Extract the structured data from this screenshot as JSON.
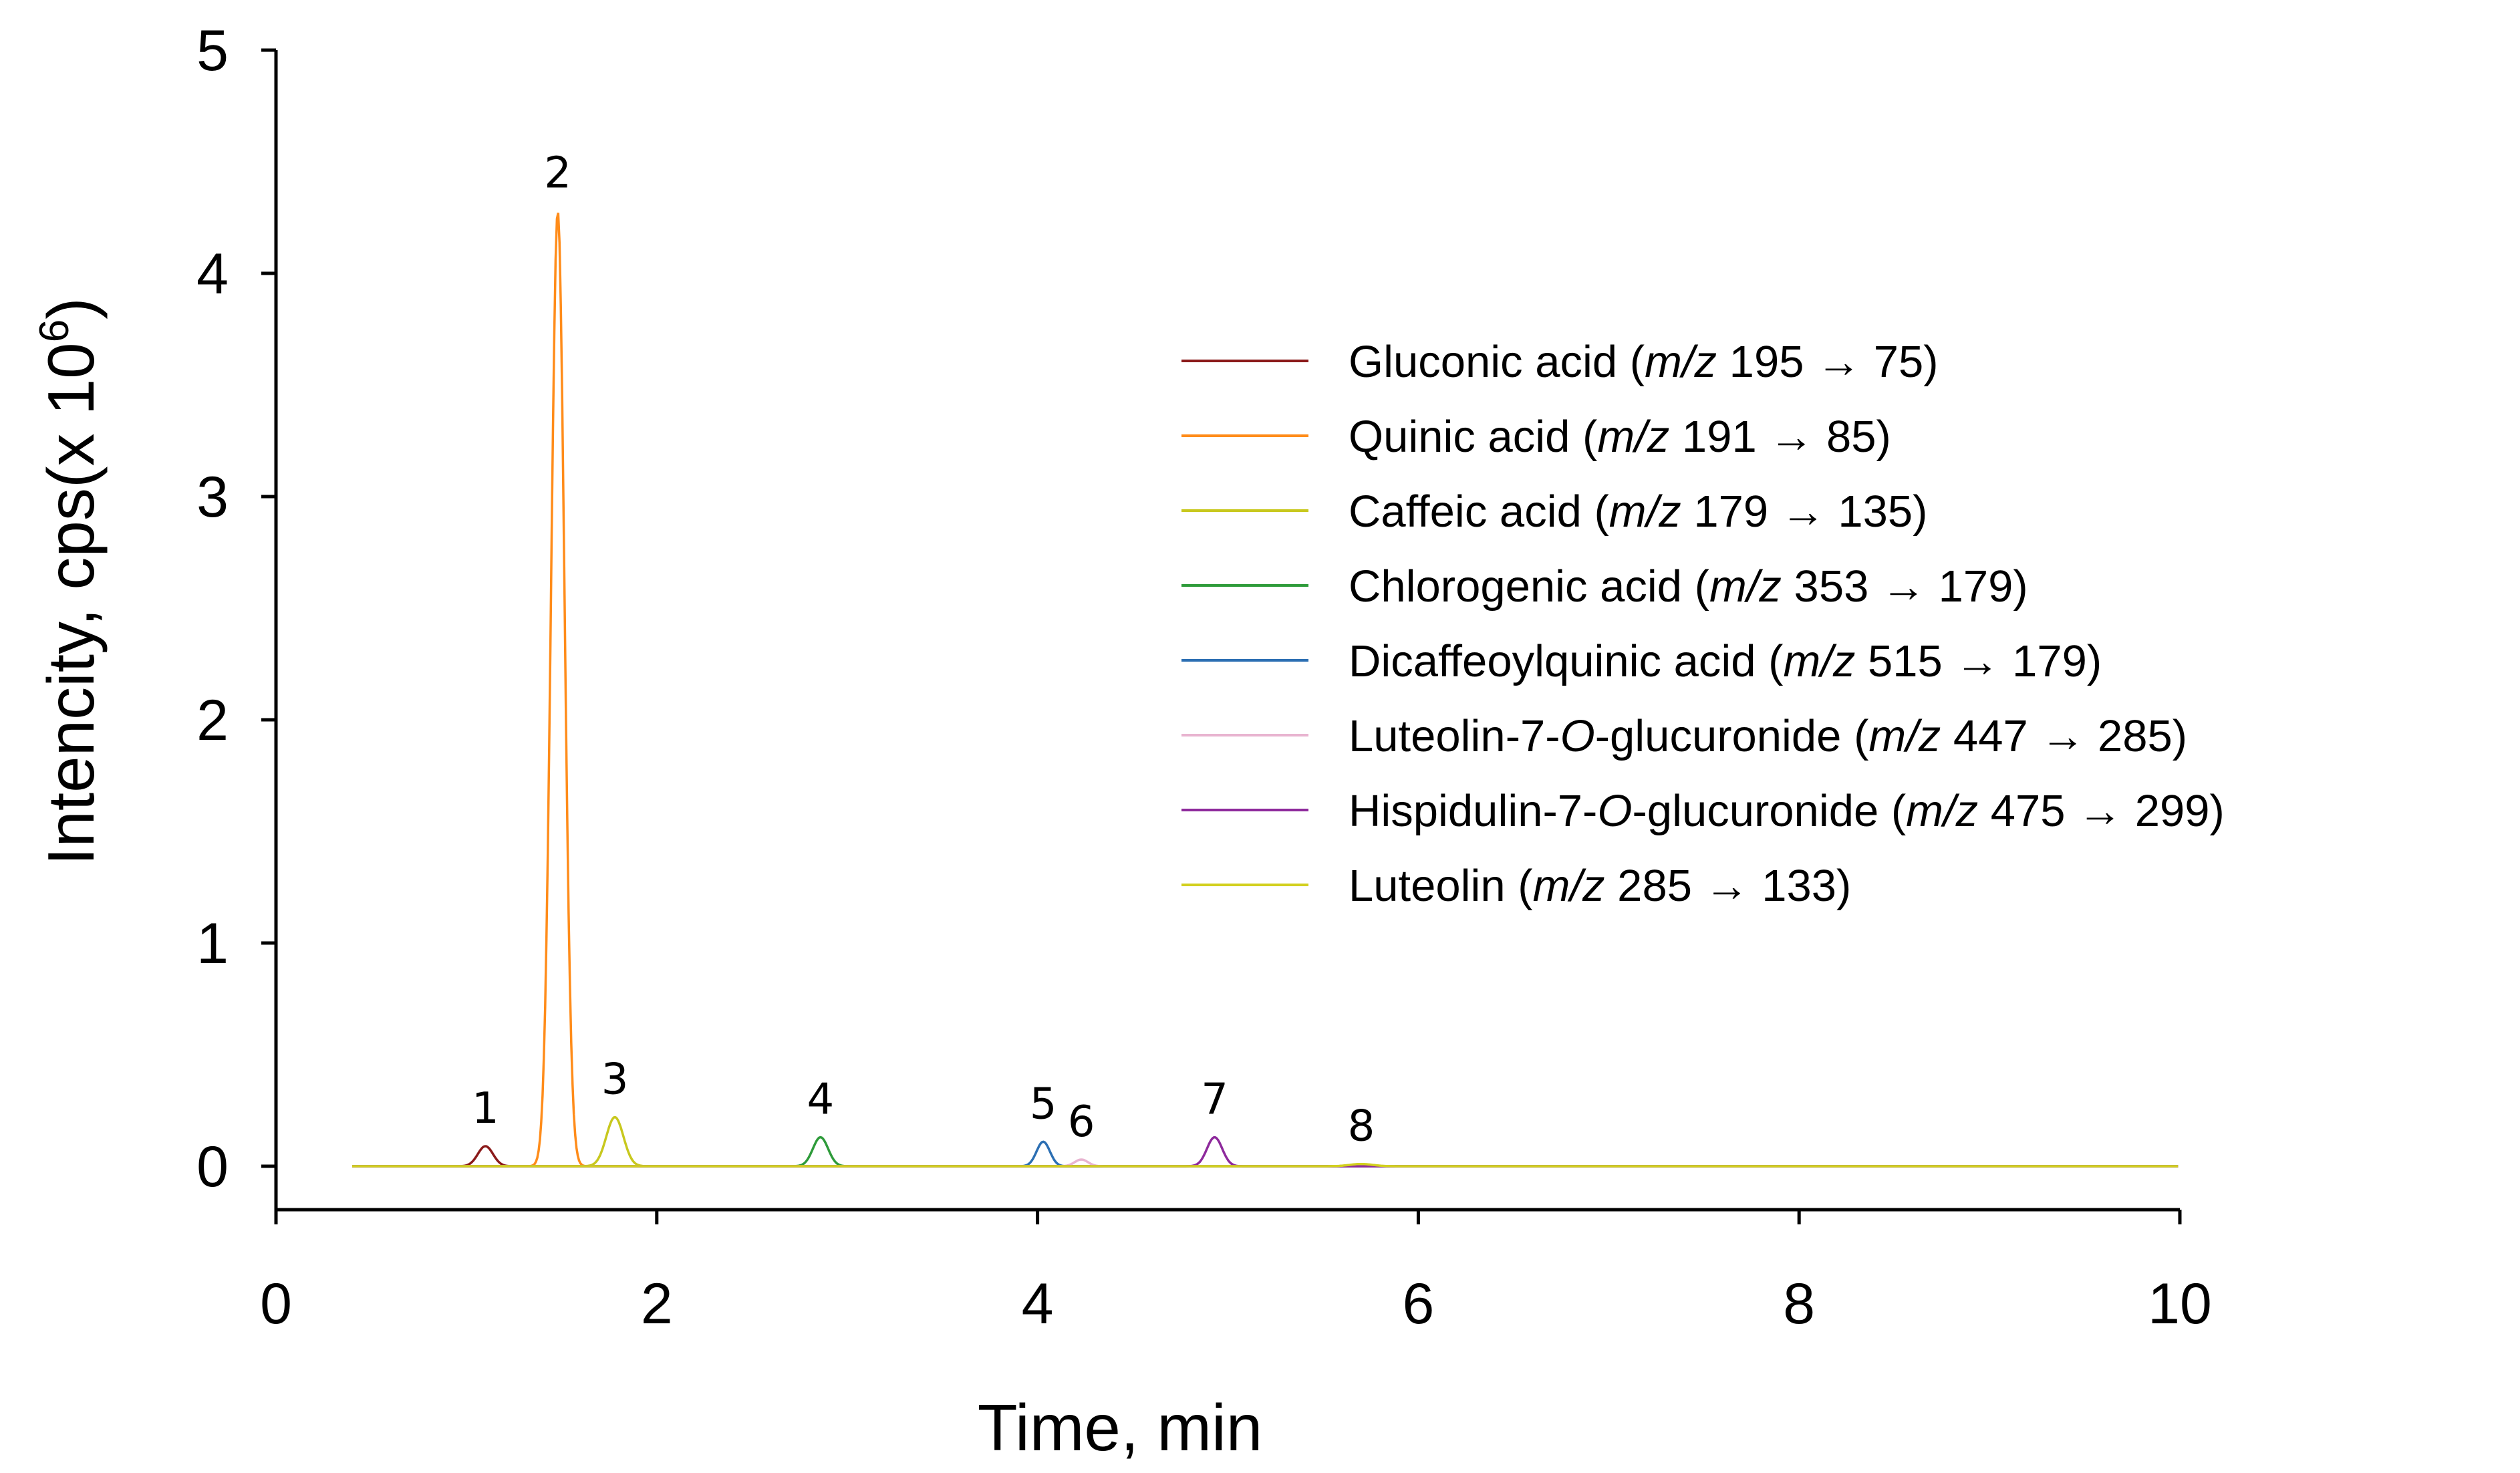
{
  "chart_data": {
    "type": "line",
    "title": "",
    "xlabel": "Time, min",
    "ylabel_text": "Intencity, cps(x 10",
    "ylabel_superscript": "6",
    "ylabel_close": ")",
    "xlim": [
      0,
      10
    ],
    "ylim": [
      0,
      5
    ],
    "x_ticks": [
      "0",
      "2",
      "4",
      "6",
      "8",
      "10"
    ],
    "y_ticks": [
      "0",
      "1",
      "2",
      "3",
      "4",
      "5"
    ],
    "grid": false,
    "legend_position": "right",
    "legend": [
      {
        "prefix": "Gluconic acid (",
        "italic": "m/z",
        "suffix": " 195 → 75)"
      },
      {
        "prefix": "Quinic acid (",
        "italic": "m/z",
        "suffix": " 191 → 85)"
      },
      {
        "prefix": "Caffeic acid (",
        "italic": "m/z",
        "suffix": " 179 → 135)"
      },
      {
        "prefix": "Chlorogenic acid (",
        "italic": "m/z",
        "suffix": " 353 → 179)"
      },
      {
        "prefix": "Dicaffeoylquinic acid (",
        "italic": "m/z",
        "suffix": " 515 → 179)"
      },
      {
        "prefix": "Luteolin-7-",
        "italic": "O",
        "suffix": "-glucuronide (",
        "italic2": "m/z",
        "suffix2": " 447 → 285)"
      },
      {
        "prefix": "Hispidulin-7-",
        "italic": "O",
        "suffix": "-glucuronide (",
        "italic2": "m/z",
        "suffix2": " 475 → 299)"
      },
      {
        "prefix": "Luteolin (",
        "italic": "m/z",
        "suffix": " 285 → 133)"
      }
    ],
    "series": [
      {
        "color": "#8B1A1A",
        "peak_x": 1.1,
        "peak_y": 0.09,
        "width": 0.04,
        "peak_label": "1"
      },
      {
        "color": "#FF8C1A",
        "peak_x": 1.48,
        "peak_y": 4.28,
        "width": 0.035,
        "peak_label": "2"
      },
      {
        "color": "#C8C81E",
        "peak_x": 1.78,
        "peak_y": 0.22,
        "width": 0.045,
        "peak_label": "3"
      },
      {
        "color": "#2E9B3A",
        "peak_x": 2.86,
        "peak_y": 0.13,
        "width": 0.04,
        "peak_label": "4"
      },
      {
        "color": "#2C6FB3",
        "peak_x": 4.03,
        "peak_y": 0.11,
        "width": 0.035,
        "peak_label": "5"
      },
      {
        "color": "#E8B4D0",
        "peak_x": 4.23,
        "peak_y": 0.03,
        "width": 0.035,
        "peak_label": "6"
      },
      {
        "color": "#8E2A9C",
        "peak_x": 4.93,
        "peak_y": 0.13,
        "width": 0.04,
        "peak_label": "7"
      },
      {
        "color": "#D2D01E",
        "peak_x": 5.7,
        "peak_y": 0.01,
        "width": 0.06,
        "peak_label": "8"
      }
    ]
  }
}
